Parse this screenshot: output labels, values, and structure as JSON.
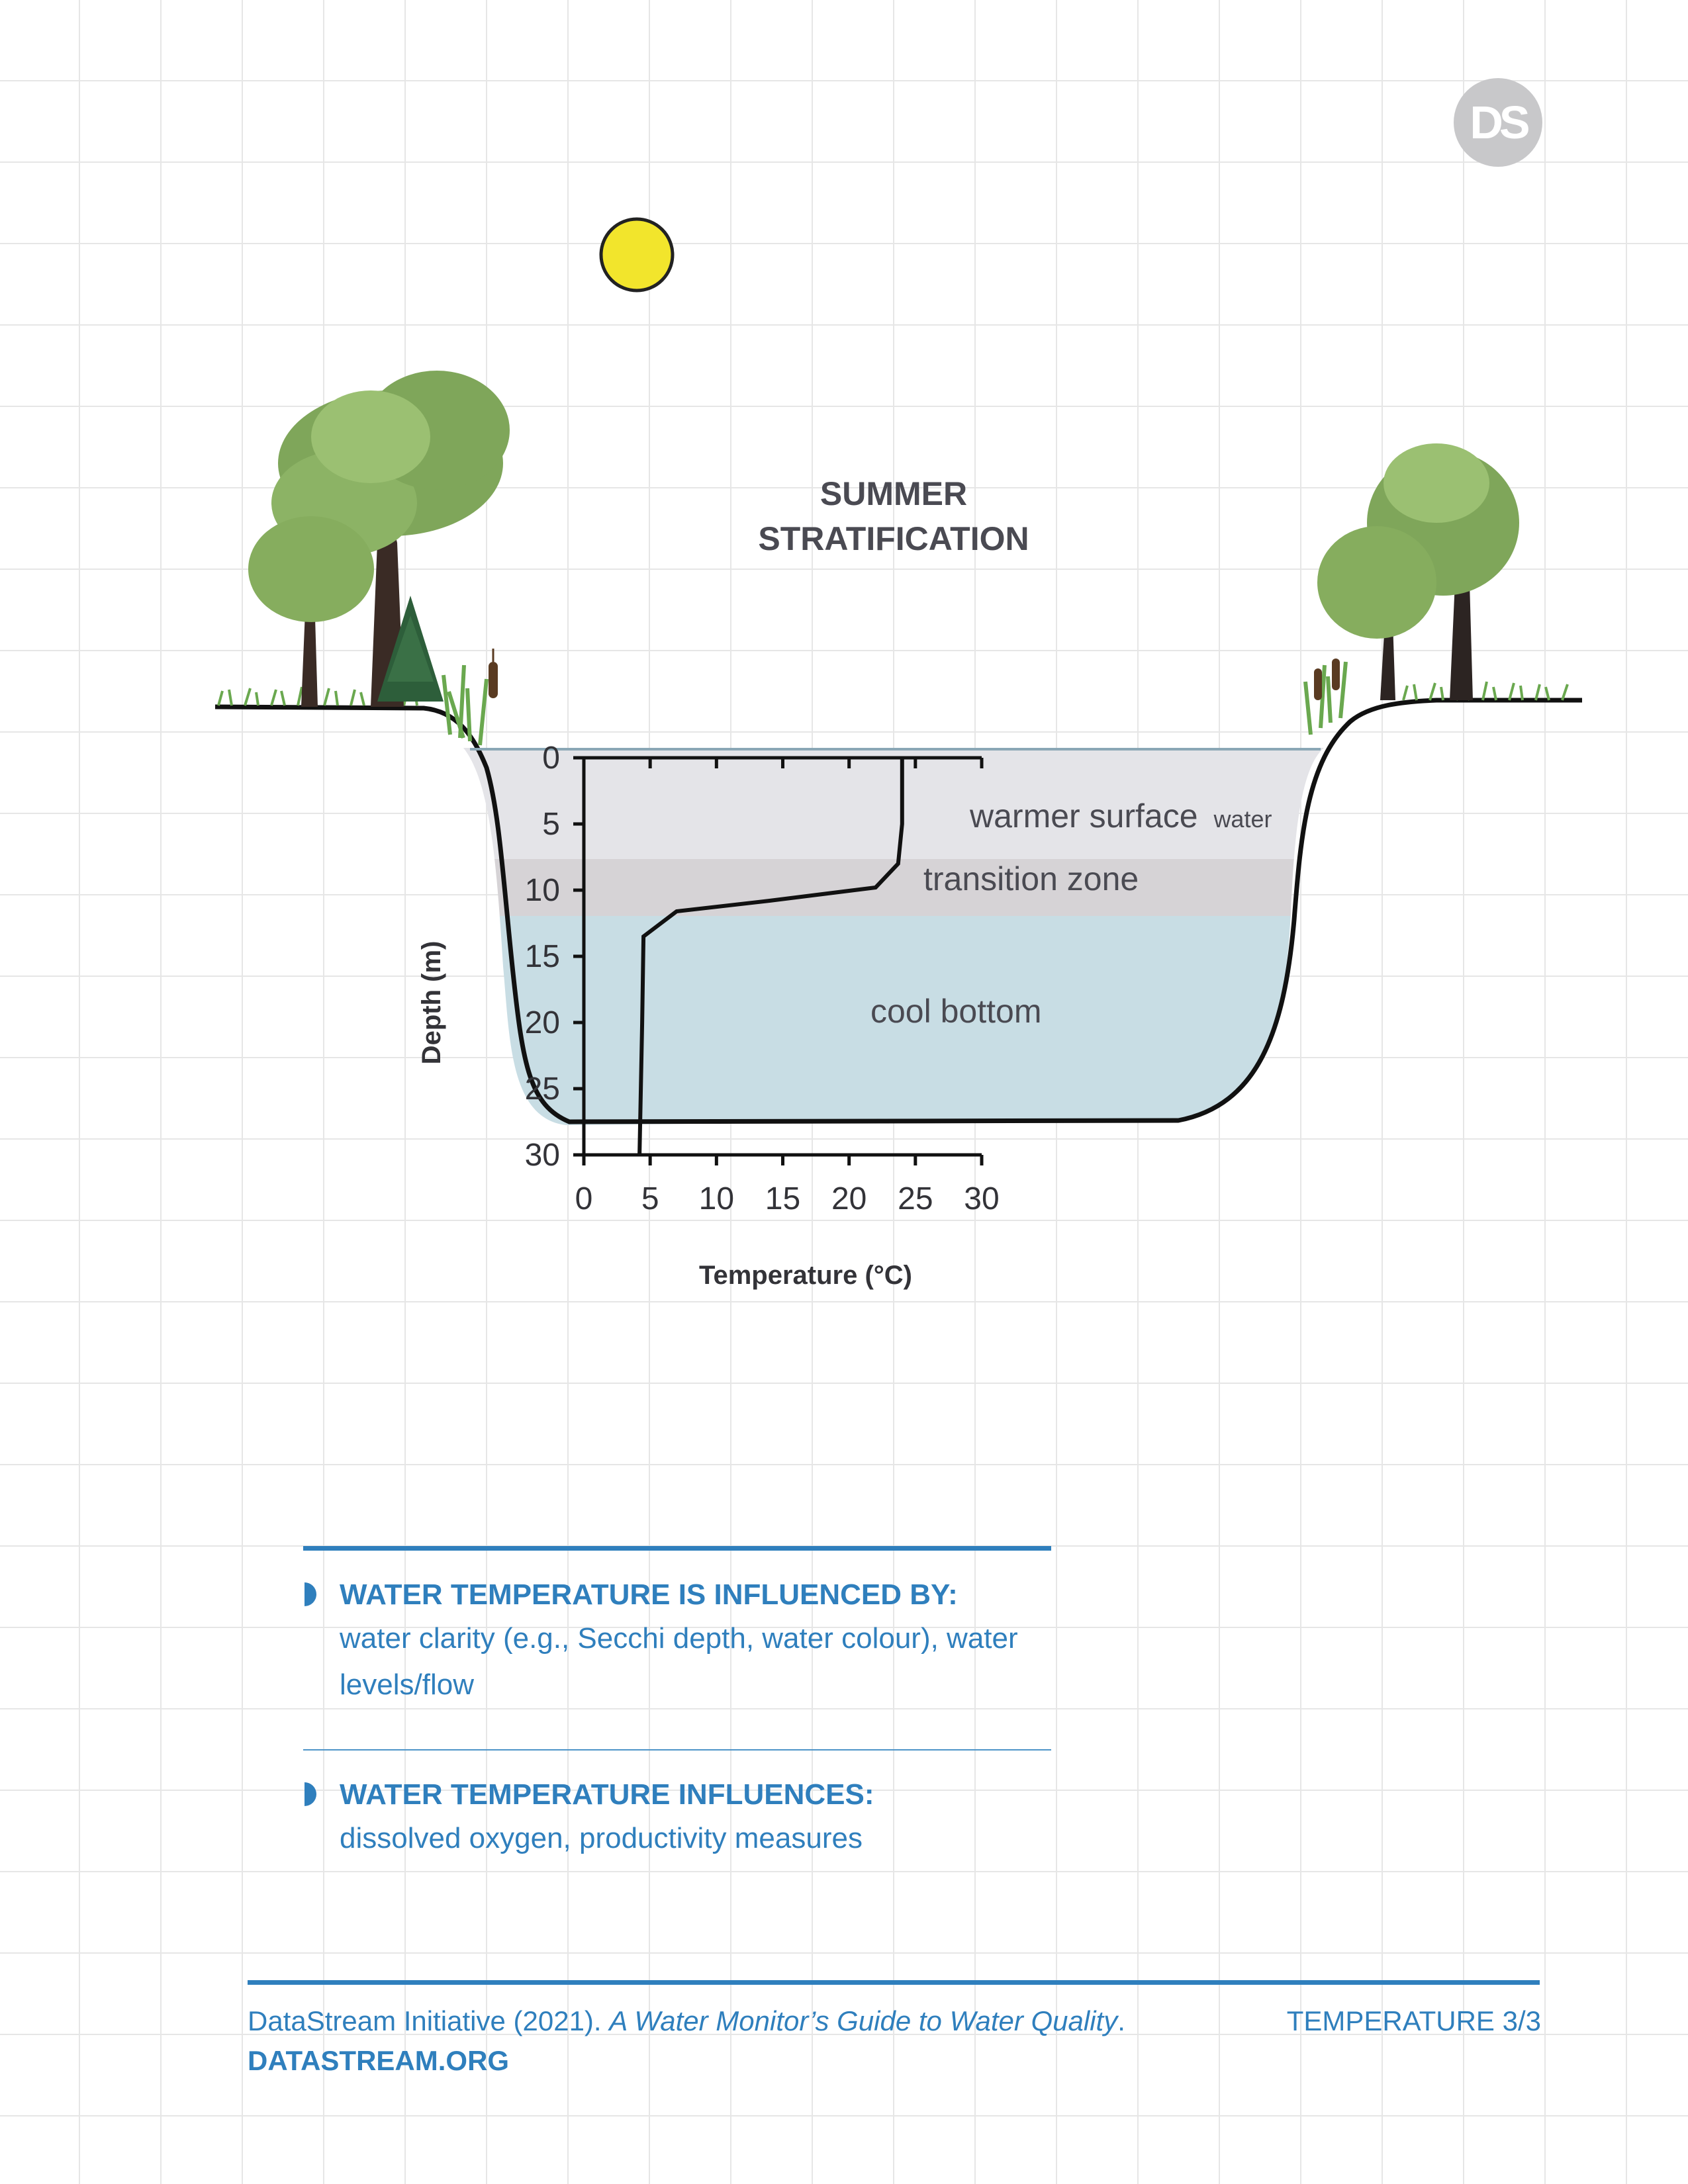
{
  "logo": {
    "text": "DS"
  },
  "diagram": {
    "title_lines": [
      "SUMMER",
      "STRATIFICATION"
    ],
    "zones": {
      "surface": {
        "label": "warmer surface",
        "suffix": "water"
      },
      "transition": {
        "label": "transition zone"
      },
      "bottom": {
        "label": "cool bottom"
      }
    },
    "colors": {
      "surface_water": "#e4e4e8",
      "transition_water": "#d6d3d6",
      "bottom_water": "#c8dde4",
      "sun": "#f2e52c",
      "tree_foliage": "#7fa65a",
      "grass": "#6aa84f"
    }
  },
  "chart_data": {
    "type": "line",
    "xlabel": "Temperature (°C)",
    "ylabel": "Depth (m)",
    "x_ticks": [
      "0",
      "5",
      "10",
      "15",
      "20",
      "25",
      "30"
    ],
    "y_ticks": [
      "0",
      "5",
      "10",
      "15",
      "20",
      "25",
      "30"
    ],
    "xlim": [
      0,
      30
    ],
    "ylim": [
      0,
      30
    ],
    "y_inverted": true,
    "series": [
      {
        "points": [
          {
            "temp": 24,
            "depth": 0
          },
          {
            "temp": 24,
            "depth": 5
          },
          {
            "temp": 23.7,
            "depth": 8
          },
          {
            "temp": 22,
            "depth": 9.8
          },
          {
            "temp": 14,
            "depth": 10.8
          },
          {
            "temp": 7,
            "depth": 11.6
          },
          {
            "temp": 4.5,
            "depth": 13.5
          },
          {
            "temp": 4.4,
            "depth": 20
          },
          {
            "temp": 4.2,
            "depth": 30
          }
        ]
      }
    ]
  },
  "info": {
    "items": [
      {
        "heading": "WATER TEMPERATURE IS INFLUENCED BY:",
        "body": "water clarity (e.g., Secchi depth, water colour), water levels/flow"
      },
      {
        "heading": "WATER TEMPERATURE INFLUENCES:",
        "body": "dissolved oxygen, productivity measures"
      }
    ]
  },
  "footer": {
    "citation_prefix": "DataStream Initiative (2021). ",
    "citation_title": "A Water Monitor’s Guide to Water Quality",
    "citation_suffix": ".",
    "site": "DATASTREAM.ORG",
    "page_label": "TEMPERATURE 3/3"
  }
}
